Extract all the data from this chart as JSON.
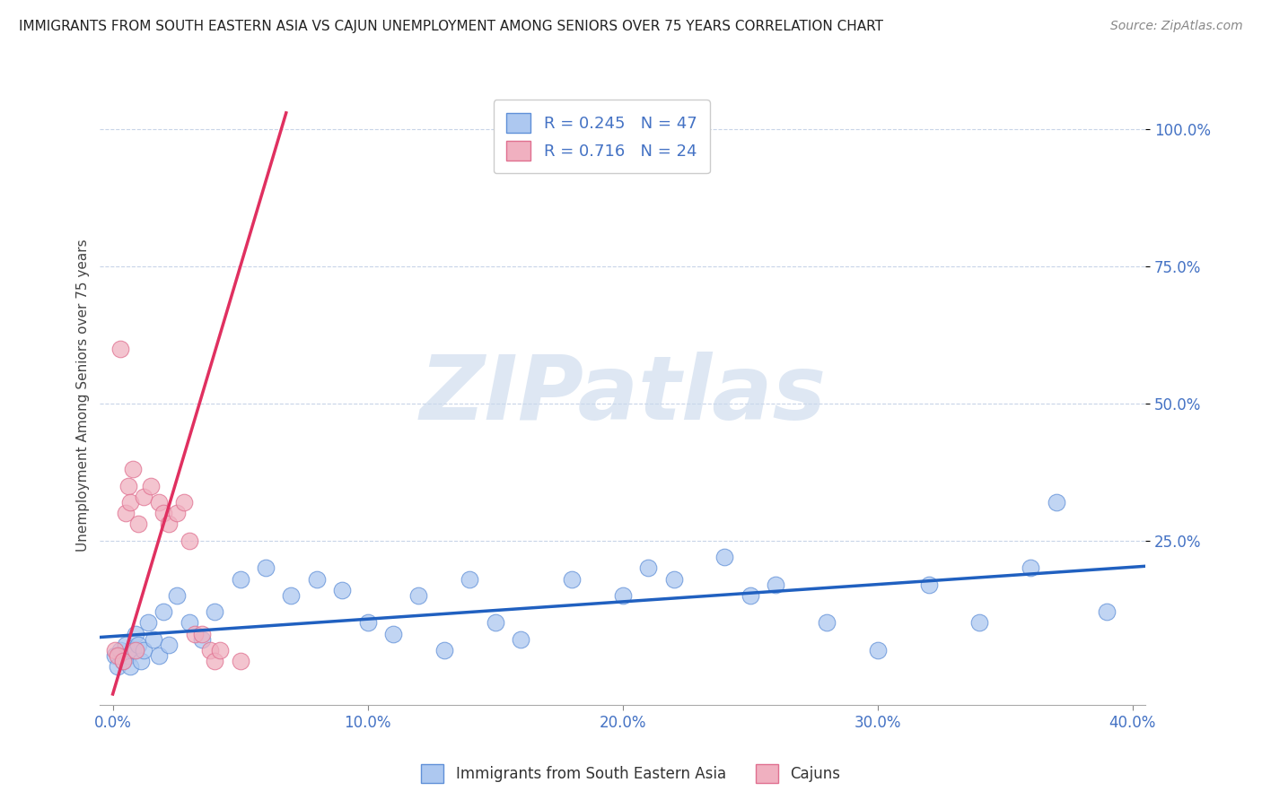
{
  "title": "IMMIGRANTS FROM SOUTH EASTERN ASIA VS CAJUN UNEMPLOYMENT AMONG SENIORS OVER 75 YEARS CORRELATION CHART",
  "source": "Source: ZipAtlas.com",
  "ylabel": "Unemployment Among Seniors over 75 years",
  "xlim": [
    -0.005,
    0.405
  ],
  "ylim": [
    -0.05,
    1.08
  ],
  "xtick_vals": [
    0.0,
    0.1,
    0.2,
    0.3,
    0.4
  ],
  "xtick_labels": [
    "0.0%",
    "10.0%",
    "20.0%",
    "30.0%",
    "40.0%"
  ],
  "ytick_vals_right": [
    0.25,
    0.5,
    0.75,
    1.0
  ],
  "ytick_labels_right": [
    "25.0%",
    "50.0%",
    "75.0%",
    "100.0%"
  ],
  "blue_color": "#adc8f0",
  "blue_edge": "#6090d8",
  "pink_color": "#f0b0c0",
  "pink_edge": "#e07090",
  "blue_line_color": "#2060c0",
  "pink_line_color": "#e03060",
  "R_blue": 0.245,
  "N_blue": 47,
  "R_pink": 0.716,
  "N_pink": 24,
  "legend_label_blue": "Immigrants from South Eastern Asia",
  "legend_label_pink": "Cajuns",
  "watermark_zip": "ZIP",
  "watermark_atlas": "atlas",
  "background_color": "#ffffff",
  "grid_color": "#c8d4e8",
  "blue_scatter_x": [
    0.001,
    0.002,
    0.003,
    0.004,
    0.005,
    0.006,
    0.007,
    0.008,
    0.009,
    0.01,
    0.011,
    0.012,
    0.014,
    0.016,
    0.018,
    0.02,
    0.022,
    0.025,
    0.03,
    0.035,
    0.04,
    0.05,
    0.06,
    0.07,
    0.08,
    0.09,
    0.1,
    0.11,
    0.12,
    0.13,
    0.14,
    0.15,
    0.16,
    0.18,
    0.2,
    0.21,
    0.22,
    0.24,
    0.25,
    0.26,
    0.28,
    0.3,
    0.32,
    0.34,
    0.36,
    0.37,
    0.39
  ],
  "blue_scatter_y": [
    0.04,
    0.02,
    0.05,
    0.03,
    0.06,
    0.04,
    0.02,
    0.05,
    0.08,
    0.06,
    0.03,
    0.05,
    0.1,
    0.07,
    0.04,
    0.12,
    0.06,
    0.15,
    0.1,
    0.07,
    0.12,
    0.18,
    0.2,
    0.15,
    0.18,
    0.16,
    0.1,
    0.08,
    0.15,
    0.05,
    0.18,
    0.1,
    0.07,
    0.18,
    0.15,
    0.2,
    0.18,
    0.22,
    0.15,
    0.17,
    0.1,
    0.05,
    0.17,
    0.1,
    0.2,
    0.32,
    0.12
  ],
  "pink_scatter_x": [
    0.001,
    0.002,
    0.003,
    0.004,
    0.005,
    0.006,
    0.007,
    0.008,
    0.009,
    0.01,
    0.012,
    0.015,
    0.018,
    0.02,
    0.022,
    0.025,
    0.028,
    0.03,
    0.032,
    0.035,
    0.038,
    0.04,
    0.042,
    0.05
  ],
  "pink_scatter_y": [
    0.05,
    0.04,
    0.6,
    0.03,
    0.3,
    0.35,
    0.32,
    0.38,
    0.05,
    0.28,
    0.33,
    0.35,
    0.32,
    0.3,
    0.28,
    0.3,
    0.32,
    0.25,
    0.08,
    0.08,
    0.05,
    0.03,
    0.05,
    0.03
  ],
  "pink_line_x0": 0.0,
  "pink_line_y0": -0.03,
  "pink_line_x1": 0.068,
  "pink_line_y1": 1.03
}
